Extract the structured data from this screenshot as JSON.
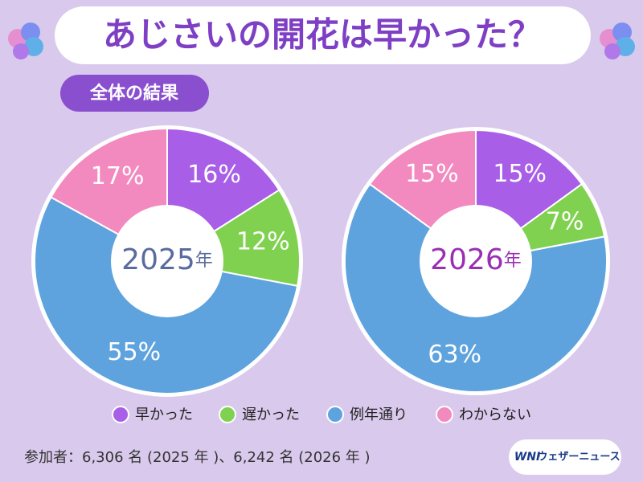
{
  "title": "あじさいの開花は早かった？",
  "subtitle": "全体の結果",
  "footer": "参加者：6,306 名 (2025 年 )、6,242 名 (2026 年 )",
  "logo": {
    "mark": "WNI",
    "text": "ウェザーニュース"
  },
  "chart_data": {
    "type": "pie",
    "categories": [
      "早かった",
      "遅かった",
      "例年通り",
      "わからない"
    ],
    "colors": [
      "#a85ee6",
      "#7fd14f",
      "#5ea3de",
      "#f28ac0"
    ],
    "series": [
      {
        "name": "2025年",
        "color": "#5a6b9e",
        "values": [
          16,
          12,
          55,
          17
        ],
        "value_labels": [
          "16%",
          "12%",
          "55%",
          "17%"
        ]
      },
      {
        "name": "2026年",
        "color": "#9a2fb3",
        "values": [
          15,
          7,
          63,
          15
        ],
        "value_labels": [
          "15%",
          "7%",
          "63%",
          "15%"
        ]
      }
    ]
  }
}
